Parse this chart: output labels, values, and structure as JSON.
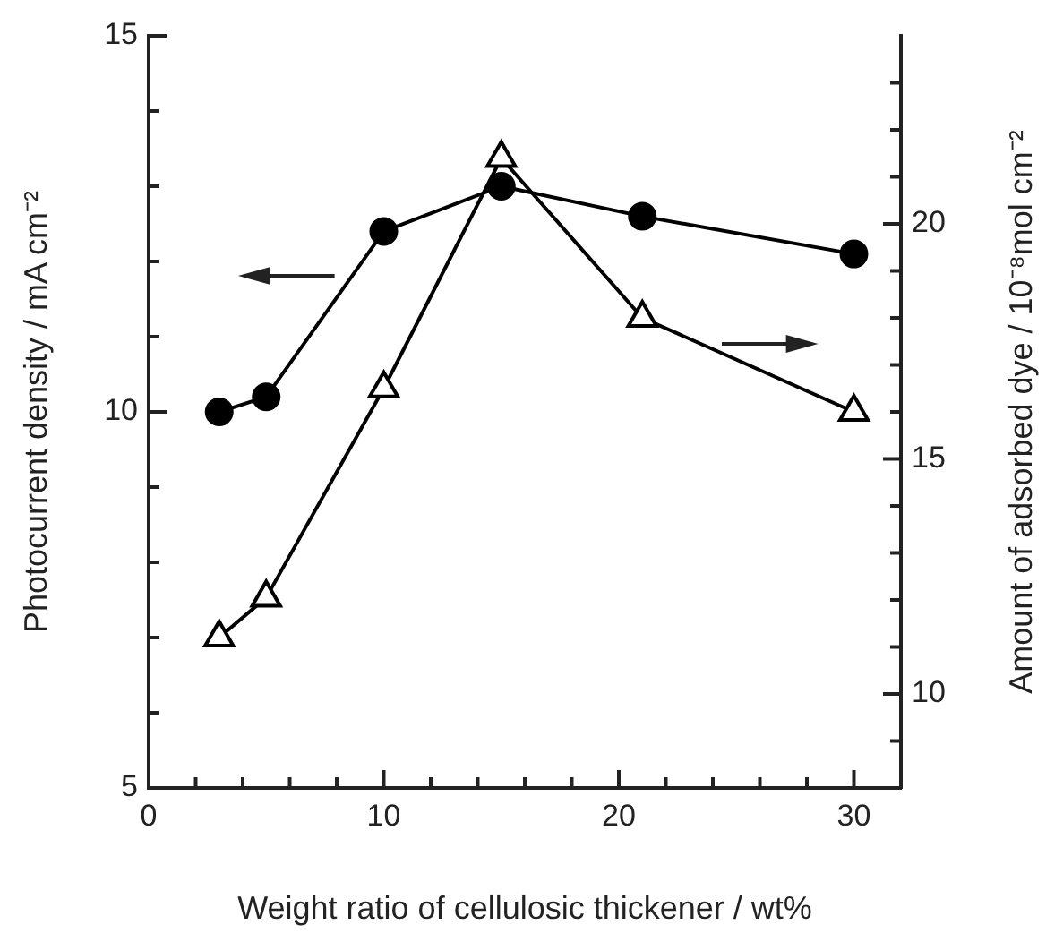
{
  "chart_data": {
    "type": "line",
    "xlabel": "Weight ratio of cellulosic thickener / wt%",
    "ylabel": "Photocurrent density / mA cm⁻²",
    "y2label": "Amount of adsorbed dye / 10⁻⁸mol cm⁻²",
    "x": [
      3,
      5,
      10,
      15,
      21,
      30
    ],
    "series": [
      {
        "color": "#000000",
        "marker": "circle",
        "values": [
          10.0,
          10.2,
          12.4,
          13.0,
          12.6,
          12.1
        ]
      },
      {
        "color": "#000000",
        "marker": "triangle",
        "axis": "y2",
        "values": [
          11.2,
          12.05,
          16.5,
          21.4,
          18.0,
          16.0
        ]
      }
    ],
    "xlim": [
      0,
      32
    ],
    "xticks": [
      0,
      {
        "value": 2,
        "label": null
      },
      {
        "value": 4,
        "label": null
      },
      {
        "value": 6,
        "label": null
      },
      {
        "value": 8,
        "label": null
      },
      10,
      {
        "value": 12,
        "label": null
      },
      {
        "value": 14,
        "label": null
      },
      {
        "value": 16,
        "label": null
      },
      {
        "value": 18,
        "label": null
      },
      20,
      {
        "value": 22,
        "label": null
      },
      {
        "value": 24,
        "label": null
      },
      {
        "value": 26,
        "label": null
      },
      {
        "value": 28,
        "label": null
      },
      30
    ],
    "ylim": [
      5,
      15
    ],
    "yticks": [
      5,
      {
        "value": 6,
        "label": null
      },
      {
        "value": 7,
        "label": null
      },
      {
        "value": 8,
        "label": null
      },
      {
        "value": 9,
        "label": null
      },
      10,
      {
        "value": 11,
        "label": null
      },
      {
        "value": 12,
        "label": null
      },
      {
        "value": 13,
        "label": null
      },
      {
        "value": 14,
        "label": null
      },
      15
    ],
    "y2lim": [
      8,
      24
    ],
    "y2ticks": [
      {
        "value": 9,
        "label": null
      },
      10,
      {
        "value": 11,
        "label": null
      },
      {
        "value": 12,
        "label": null
      },
      {
        "value": 13,
        "label": null
      },
      {
        "value": 14,
        "label": null
      },
      15,
      {
        "value": 16,
        "label": null
      },
      {
        "value": 17,
        "label": null
      },
      {
        "value": 18,
        "label": null
      },
      {
        "value": 19,
        "label": null
      },
      20,
      {
        "value": 21,
        "label": null
      },
      {
        "value": 22,
        "label": null
      },
      {
        "value": 23,
        "label": null
      }
    ],
    "grid": false,
    "legend": false,
    "line_style": "solid"
  }
}
